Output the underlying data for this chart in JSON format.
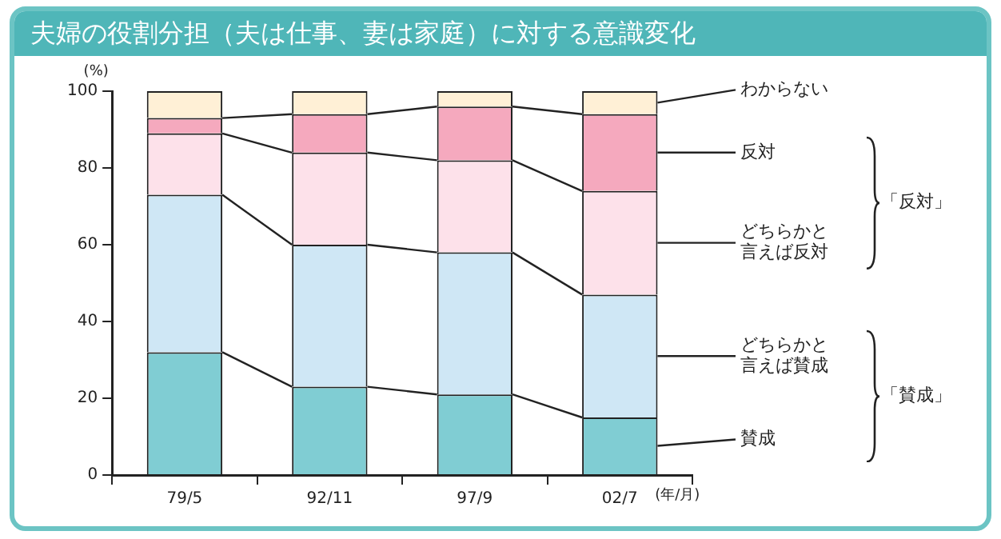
{
  "chart_data": {
    "type": "bar",
    "title": "夫婦の役割分担（夫は仕事、妻は家庭）に対する意識変化",
    "xlabel": "(年/月)",
    "ylabel": "(%)",
    "categories": [
      "79/5",
      "92/11",
      "97/9",
      "02/7"
    ],
    "stacked": true,
    "ylim": [
      0,
      100
    ],
    "yticks": [
      0,
      20,
      40,
      60,
      80,
      100
    ],
    "legend": false,
    "series": [
      {
        "name": "賛成",
        "color": "#80cdd3",
        "values": [
          32,
          23,
          21,
          15
        ]
      },
      {
        "name": "どちらかと言えば賛成",
        "color": "#cfe7f5",
        "values": [
          41,
          37,
          37,
          32
        ]
      },
      {
        "name": "どちらかと言えば反対",
        "color": "#fde1ea",
        "values": [
          16,
          24,
          24,
          27
        ]
      },
      {
        "name": "反対",
        "color": "#f5a9be",
        "values": [
          4,
          10,
          14,
          20
        ]
      },
      {
        "name": "わからない",
        "color": "#fff0d6",
        "values": [
          7,
          6,
          4,
          6
        ]
      }
    ],
    "annotations": [
      "「反対」",
      "「賛成」"
    ]
  }
}
